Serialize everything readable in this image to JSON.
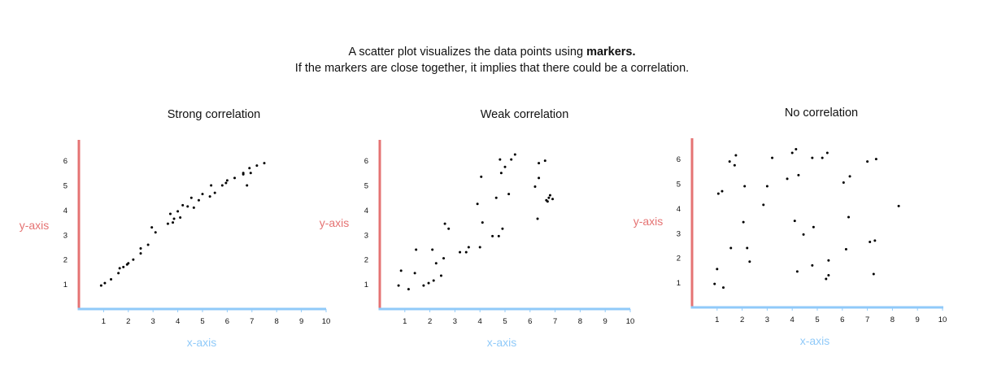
{
  "intro": {
    "line1_pre": "A  scatter plot  visualizes the data points using ",
    "line1_bold": "markers.",
    "line2": "If the markers are close together, it implies that there could be a correlation."
  },
  "colors": {
    "y_axis": "#e57373",
    "x_axis": "#90caf9",
    "points": "#000000"
  },
  "chart_data": [
    {
      "type": "scatter",
      "title": "Strong correlation",
      "xlabel": "x-axis",
      "ylabel": "y-axis",
      "xlim": [
        0,
        10
      ],
      "ylim": [
        0,
        6.7
      ],
      "x_ticks": [
        1,
        2,
        3,
        4,
        5,
        6,
        7,
        8,
        9,
        10
      ],
      "y_ticks": [
        1,
        2,
        3,
        4,
        5,
        6
      ],
      "grid": false,
      "points": [
        [
          0.9,
          0.95
        ],
        [
          1.05,
          1.05
        ],
        [
          1.3,
          1.2
        ],
        [
          1.6,
          1.45
        ],
        [
          1.65,
          1.65
        ],
        [
          1.8,
          1.7
        ],
        [
          1.95,
          1.8
        ],
        [
          2.0,
          1.85
        ],
        [
          2.2,
          2.0
        ],
        [
          2.5,
          2.25
        ],
        [
          2.5,
          2.45
        ],
        [
          2.8,
          2.6
        ],
        [
          2.95,
          3.3
        ],
        [
          3.1,
          3.1
        ],
        [
          3.6,
          3.45
        ],
        [
          3.7,
          3.85
        ],
        [
          3.8,
          3.5
        ],
        [
          3.85,
          3.65
        ],
        [
          4.0,
          3.95
        ],
        [
          4.1,
          3.7
        ],
        [
          4.2,
          4.2
        ],
        [
          4.4,
          4.15
        ],
        [
          4.55,
          4.5
        ],
        [
          4.65,
          4.1
        ],
        [
          4.85,
          4.4
        ],
        [
          5.0,
          4.65
        ],
        [
          5.3,
          4.55
        ],
        [
          5.35,
          5.0
        ],
        [
          5.5,
          4.7
        ],
        [
          5.8,
          5.0
        ],
        [
          5.95,
          5.1
        ],
        [
          6.0,
          5.2
        ],
        [
          6.3,
          5.3
        ],
        [
          6.65,
          5.45
        ],
        [
          6.65,
          5.5
        ],
        [
          6.8,
          5.0
        ],
        [
          6.9,
          5.7
        ],
        [
          6.95,
          5.5
        ],
        [
          7.2,
          5.8
        ],
        [
          7.5,
          5.9
        ]
      ]
    },
    {
      "type": "scatter",
      "title": "Weak correlation",
      "xlabel": "x-axis",
      "ylabel": "y-axis",
      "xlim": [
        0,
        10
      ],
      "ylim": [
        0,
        6.7
      ],
      "x_ticks": [
        1,
        2,
        3,
        4,
        5,
        6,
        7,
        8,
        9,
        10
      ],
      "y_ticks": [
        1,
        2,
        3,
        4,
        5,
        6
      ],
      "grid": false,
      "points": [
        [
          0.75,
          0.95
        ],
        [
          0.85,
          1.55
        ],
        [
          1.15,
          0.8
        ],
        [
          1.4,
          1.45
        ],
        [
          1.45,
          2.4
        ],
        [
          1.75,
          0.95
        ],
        [
          1.95,
          1.05
        ],
        [
          2.1,
          2.4
        ],
        [
          2.15,
          1.15
        ],
        [
          2.25,
          1.85
        ],
        [
          2.45,
          1.35
        ],
        [
          2.55,
          2.05
        ],
        [
          2.6,
          3.45
        ],
        [
          2.75,
          3.25
        ],
        [
          3.2,
          2.3
        ],
        [
          3.45,
          2.3
        ],
        [
          3.55,
          2.5
        ],
        [
          3.9,
          4.25
        ],
        [
          4.0,
          2.5
        ],
        [
          4.05,
          5.35
        ],
        [
          4.1,
          3.5
        ],
        [
          4.5,
          2.95
        ],
        [
          4.65,
          4.5
        ],
        [
          4.75,
          2.95
        ],
        [
          4.8,
          6.05
        ],
        [
          4.85,
          5.5
        ],
        [
          4.9,
          3.25
        ],
        [
          5.0,
          5.75
        ],
        [
          5.15,
          4.65
        ],
        [
          5.25,
          6.05
        ],
        [
          5.4,
          6.25
        ],
        [
          6.2,
          4.95
        ],
        [
          6.3,
          3.65
        ],
        [
          6.35,
          5.9
        ],
        [
          6.35,
          5.3
        ],
        [
          6.6,
          6.0
        ],
        [
          6.65,
          4.4
        ],
        [
          6.7,
          4.35
        ],
        [
          6.75,
          4.5
        ],
        [
          6.8,
          4.6
        ],
        [
          6.9,
          4.45
        ]
      ]
    },
    {
      "type": "scatter",
      "title": "No correlation",
      "xlabel": "x-axis",
      "ylabel": "y-axis",
      "xlim": [
        0,
        10
      ],
      "ylim": [
        0,
        6.7
      ],
      "x_ticks": [
        1,
        2,
        3,
        4,
        5,
        6,
        7,
        8,
        9,
        10
      ],
      "y_ticks": [
        1,
        2,
        3,
        4,
        5,
        6
      ],
      "grid": false,
      "points": [
        [
          0.9,
          0.95
        ],
        [
          1.0,
          1.55
        ],
        [
          1.05,
          4.6
        ],
        [
          1.2,
          4.7
        ],
        [
          1.25,
          0.8
        ],
        [
          1.5,
          5.9
        ],
        [
          1.55,
          2.4
        ],
        [
          1.7,
          5.75
        ],
        [
          1.75,
          6.15
        ],
        [
          2.05,
          3.45
        ],
        [
          2.1,
          4.9
        ],
        [
          2.2,
          2.4
        ],
        [
          2.3,
          1.85
        ],
        [
          2.85,
          4.15
        ],
        [
          3.0,
          4.9
        ],
        [
          3.2,
          6.05
        ],
        [
          3.8,
          5.2
        ],
        [
          4.0,
          6.25
        ],
        [
          4.1,
          3.5
        ],
        [
          4.15,
          6.4
        ],
        [
          4.2,
          1.45
        ],
        [
          4.25,
          5.35
        ],
        [
          4.45,
          2.95
        ],
        [
          4.8,
          1.7
        ],
        [
          4.8,
          6.05
        ],
        [
          4.85,
          3.25
        ],
        [
          5.2,
          6.05
        ],
        [
          5.35,
          1.15
        ],
        [
          5.4,
          6.25
        ],
        [
          5.45,
          1.3
        ],
        [
          5.45,
          1.9
        ],
        [
          6.05,
          5.05
        ],
        [
          6.15,
          2.35
        ],
        [
          6.25,
          3.65
        ],
        [
          6.3,
          5.3
        ],
        [
          7.0,
          5.9
        ],
        [
          7.1,
          2.65
        ],
        [
          7.25,
          1.35
        ],
        [
          7.3,
          2.7
        ],
        [
          7.35,
          6.0
        ],
        [
          8.25,
          4.1
        ]
      ]
    }
  ]
}
